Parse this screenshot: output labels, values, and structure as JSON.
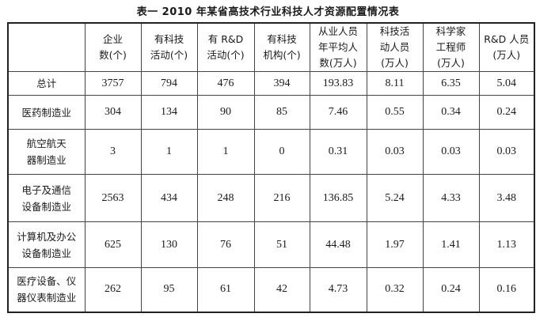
{
  "title": "表一  2010 年某省高技术行业科技人才资源配置情况表",
  "headers": [
    [
      ""
    ],
    [
      "企业",
      "数(个)"
    ],
    [
      "有科技",
      "活动(个)"
    ],
    [
      "有 R&D",
      "活动(个)"
    ],
    [
      "有科技",
      "机构(个)"
    ],
    [
      "从业人员",
      "年平均人",
      "数(万人)"
    ],
    [
      "科技活",
      "动人员",
      "(万人)"
    ],
    [
      "科学家",
      "工程师",
      "(万人)"
    ],
    [
      "R&D 人员",
      "(万人)"
    ]
  ],
  "rows": [
    {
      "label": [
        "总计"
      ],
      "values": [
        "3757",
        "794",
        "476",
        "394",
        "193.83",
        "8.11",
        "6.35",
        "5.04"
      ]
    },
    {
      "label": [
        "医药制造业"
      ],
      "values": [
        "304",
        "134",
        "90",
        "85",
        "7.46",
        "0.55",
        "0.34",
        "0.24"
      ]
    },
    {
      "label": [
        "航空航天",
        "器制造业"
      ],
      "values": [
        "3",
        "1",
        "1",
        "0",
        "0.31",
        "0.03",
        "0.03",
        "0.03"
      ]
    },
    {
      "label": [
        "电子及通信",
        "设备制造业"
      ],
      "values": [
        "2563",
        "434",
        "248",
        "216",
        "136.85",
        "5.24",
        "4.33",
        "3.48"
      ]
    },
    {
      "label": [
        "计算机及办公",
        "设备制造业"
      ],
      "values": [
        "625",
        "130",
        "76",
        "51",
        "44.48",
        "1.97",
        "1.41",
        "1.13"
      ]
    },
    {
      "label": [
        "医疗设备、仪",
        "器仪表制造业"
      ],
      "values": [
        "262",
        "95",
        "61",
        "42",
        "4.73",
        "0.32",
        "0.24",
        "0.16"
      ]
    }
  ]
}
